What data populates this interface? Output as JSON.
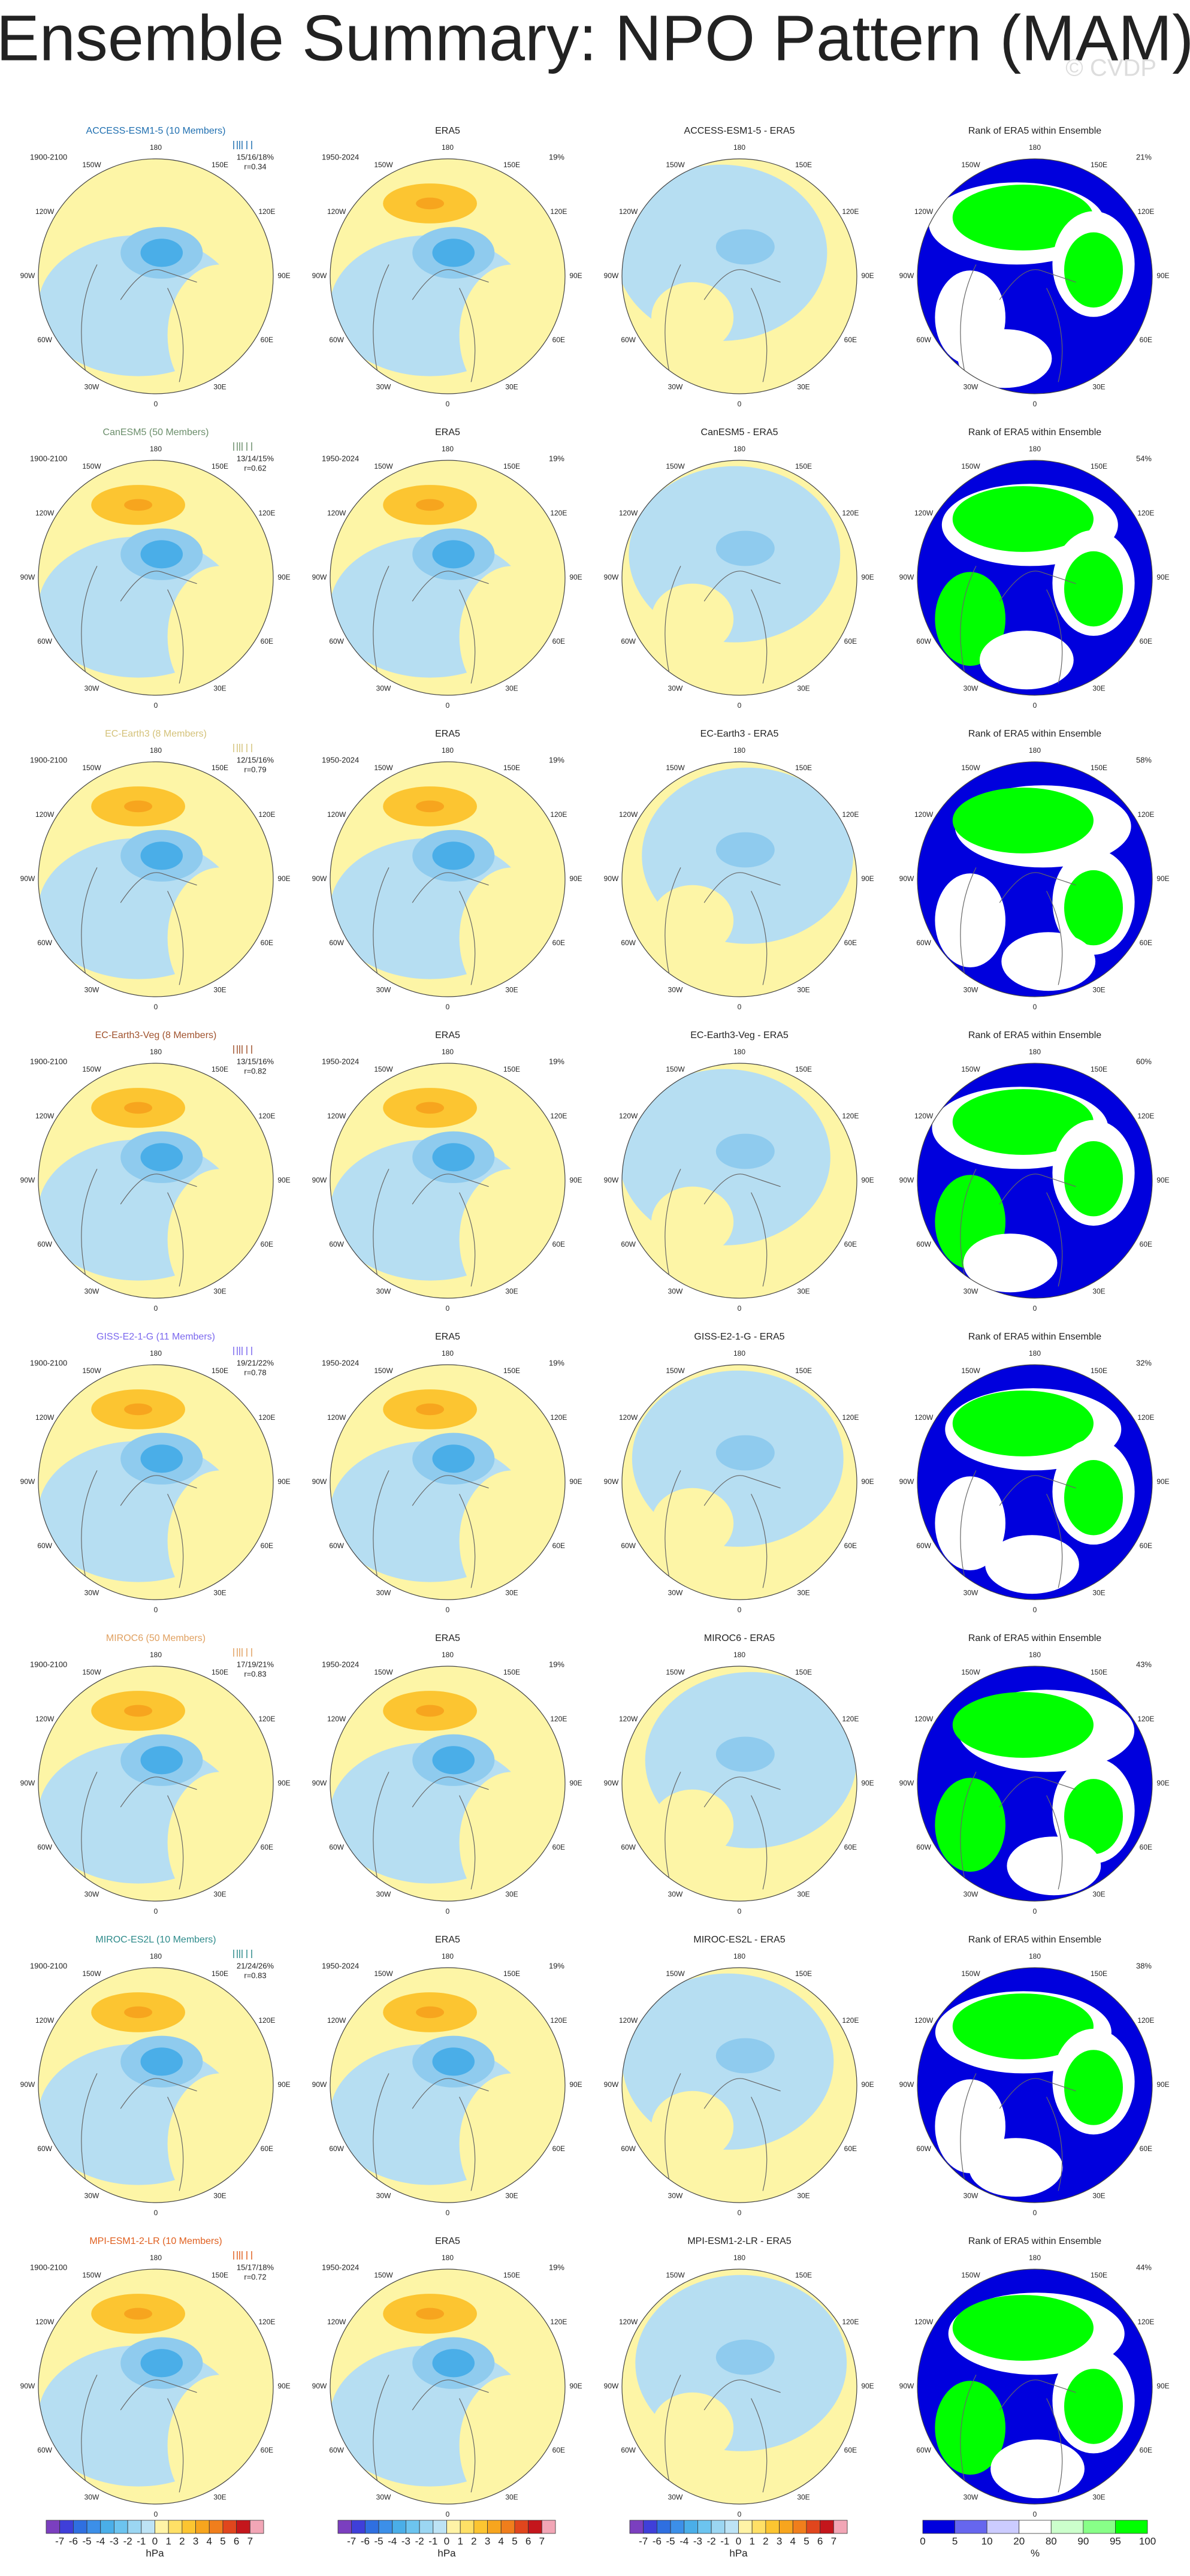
{
  "header": {
    "title": "Ensemble Summary: NPO Pattern (MAM)",
    "watermark": "© CVDP"
  },
  "map_labels": {
    "lon": [
      "180",
      "150E",
      "120E",
      "90E",
      "60E",
      "30E",
      "0",
      "30W",
      "60W",
      "90W",
      "120W",
      "150W"
    ],
    "model_period": "1900-2100",
    "era5_title": "ERA5",
    "era5_period": "1950-2024",
    "era5_pct": "19%",
    "rank_title": "Rank of ERA5 within Ensemble"
  },
  "rows": [
    {
      "model": "ACCESS-ESM1-5 (10 Members)",
      "color": "#1f6fb0",
      "stats": "15/16/18%",
      "r": "r=0.34",
      "diff_title": "ACCESS-ESM1-5 - ERA5",
      "rank_pct": "21%"
    },
    {
      "model": "CanESM5 (50 Members)",
      "color": "#6b8e6b",
      "stats": "13/14/15%",
      "r": "r=0.62",
      "diff_title": "CanESM5 - ERA5",
      "rank_pct": "54%"
    },
    {
      "model": "EC-Earth3 (8 Members)",
      "color": "#d4c27a",
      "stats": "12/15/16%",
      "r": "r=0.79",
      "diff_title": "EC-Earth3 - ERA5",
      "rank_pct": "58%"
    },
    {
      "model": "EC-Earth3-Veg (8 Members)",
      "color": "#a0522d",
      "stats": "13/15/16%",
      "r": "r=0.82",
      "diff_title": "EC-Earth3-Veg - ERA5",
      "rank_pct": "60%"
    },
    {
      "model": "GISS-E2-1-G (11 Members)",
      "color": "#7b68ee",
      "stats": "19/21/22%",
      "r": "r=0.78",
      "diff_title": "GISS-E2-1-G - ERA5",
      "rank_pct": "32%"
    },
    {
      "model": "MIROC6 (50 Members)",
      "color": "#e0a060",
      "stats": "17/19/21%",
      "r": "r=0.83",
      "diff_title": "MIROC6 - ERA5",
      "rank_pct": "43%"
    },
    {
      "model": "MIROC-ES2L (10 Members)",
      "color": "#2e8b8b",
      "stats": "21/24/26%",
      "r": "r=0.83",
      "diff_title": "MIROC-ES2L - ERA5",
      "rank_pct": "38%"
    },
    {
      "model": "MPI-ESM1-2-LR (10 Members)",
      "color": "#e06020",
      "stats": "15/17/18%",
      "r": "r=0.72",
      "diff_title": "MPI-ESM1-2-LR - ERA5",
      "rank_pct": "44%"
    }
  ],
  "colorbars": {
    "hpa": {
      "labels": [
        -7,
        -6,
        -5,
        -4,
        -3,
        -2,
        -1,
        0,
        1,
        2,
        3,
        4,
        5,
        6,
        7
      ],
      "unit": "hPa",
      "colors": [
        "#7b3fbf",
        "#3f3fd9",
        "#2f6fe0",
        "#3c8fe8",
        "#4aaee8",
        "#6cc4ef",
        "#9bd6f2",
        "#bde3f5",
        "#fff3a6",
        "#ffe066",
        "#fcc531",
        "#f7a51e",
        "#f07e1c",
        "#e0461d",
        "#c4161c",
        "#f2a6b6"
      ]
    },
    "rank": {
      "labels": [
        0,
        5,
        10,
        20,
        80,
        90,
        95,
        100
      ],
      "unit": "%",
      "colors": [
        "#0000dd",
        "#6666ee",
        "#ccccff",
        "#ffffff",
        "#ccffcc",
        "#88ff88",
        "#00ff00"
      ]
    }
  }
}
